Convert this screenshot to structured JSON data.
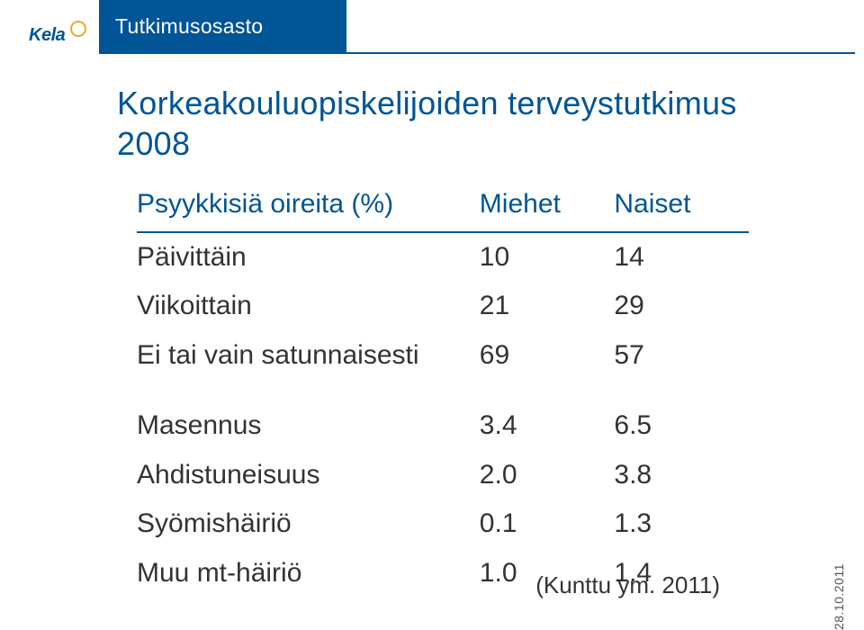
{
  "header": {
    "brand": "Kela",
    "department": "Tutkimusosasto"
  },
  "title": "Korkeakouluopiskelijoiden terveystutkimus 2008",
  "table": {
    "head_label": "Psyykkisiä oireita (%)",
    "col_m": "Miehet",
    "col_n": "Naiset",
    "rows1": [
      {
        "label": "Päivittäin",
        "m": "10",
        "n": "14"
      },
      {
        "label": "Viikoittain",
        "m": "21",
        "n": "29"
      },
      {
        "label": "Ei tai vain satunnaisesti",
        "m": "69",
        "n": "57"
      }
    ],
    "rows2": [
      {
        "label": "Masennus",
        "m": "3.4",
        "n": "6.5"
      },
      {
        "label": "Ahdistuneisuus",
        "m": "2.0",
        "n": "3.8"
      },
      {
        "label": "Syömishäiriö",
        "m": "0.1",
        "n": "1.3"
      },
      {
        "label": "Muu mt-häiriö",
        "m": "1.0",
        "n": "1.4"
      }
    ]
  },
  "citation": "(Kunttu ym. 2011)",
  "side_date": "28.10.2011",
  "colors": {
    "brand_blue": "#005596",
    "accent_orange": "#f5a623",
    "text": "#333333",
    "bg": "#ffffff"
  }
}
